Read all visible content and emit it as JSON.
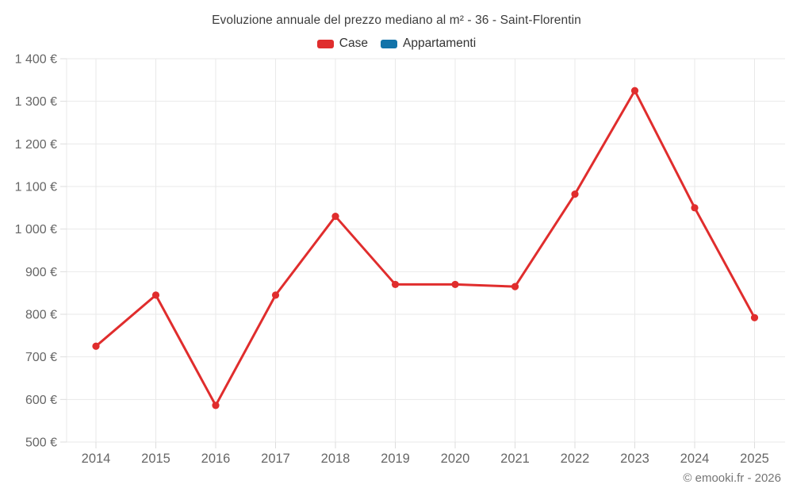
{
  "title": "Evoluzione annuale del prezzo mediano al m² - 36 - Saint-Florentin",
  "footer": "© emooki.fr - 2026",
  "legend": [
    {
      "label": "Case",
      "color": "#e02d2d"
    },
    {
      "label": "Appartamenti",
      "color": "#1273a9"
    }
  ],
  "colors": {
    "case_red": "#e02d2d",
    "appartamenti_blue": "#1273a9",
    "grid": "#e9e9e9",
    "tick": "#dddddd",
    "axis_label": "#666666",
    "title_text": "#3d3d3d",
    "footer_text": "#757575",
    "background": "#ffffff"
  },
  "chart_data": {
    "type": "line",
    "title": "Evoluzione annuale del prezzo mediano al m² - 36 - Saint-Florentin",
    "xlabel": "",
    "ylabel": "",
    "categories": [
      "2014",
      "2015",
      "2016",
      "2017",
      "2018",
      "2019",
      "2020",
      "2021",
      "2022",
      "2023",
      "2024",
      "2025"
    ],
    "series": [
      {
        "name": "Case",
        "color": "#e02d2d",
        "values": [
          725,
          845,
          586,
          845,
          1030,
          870,
          870,
          865,
          1082,
          1325,
          1050,
          792
        ]
      },
      {
        "name": "Appartamenti",
        "color": "#1273a9",
        "values": []
      }
    ],
    "ylim": [
      500,
      1400
    ],
    "ytick_step": 100,
    "ytick_labels": [
      "500 €",
      "600 €",
      "700 €",
      "800 €",
      "900 €",
      "1 000 €",
      "1 100 €",
      "1 200 €",
      "1 300 €",
      "1 400 €"
    ],
    "grid": true,
    "legend_position": "top",
    "currency_suffix": " €"
  }
}
